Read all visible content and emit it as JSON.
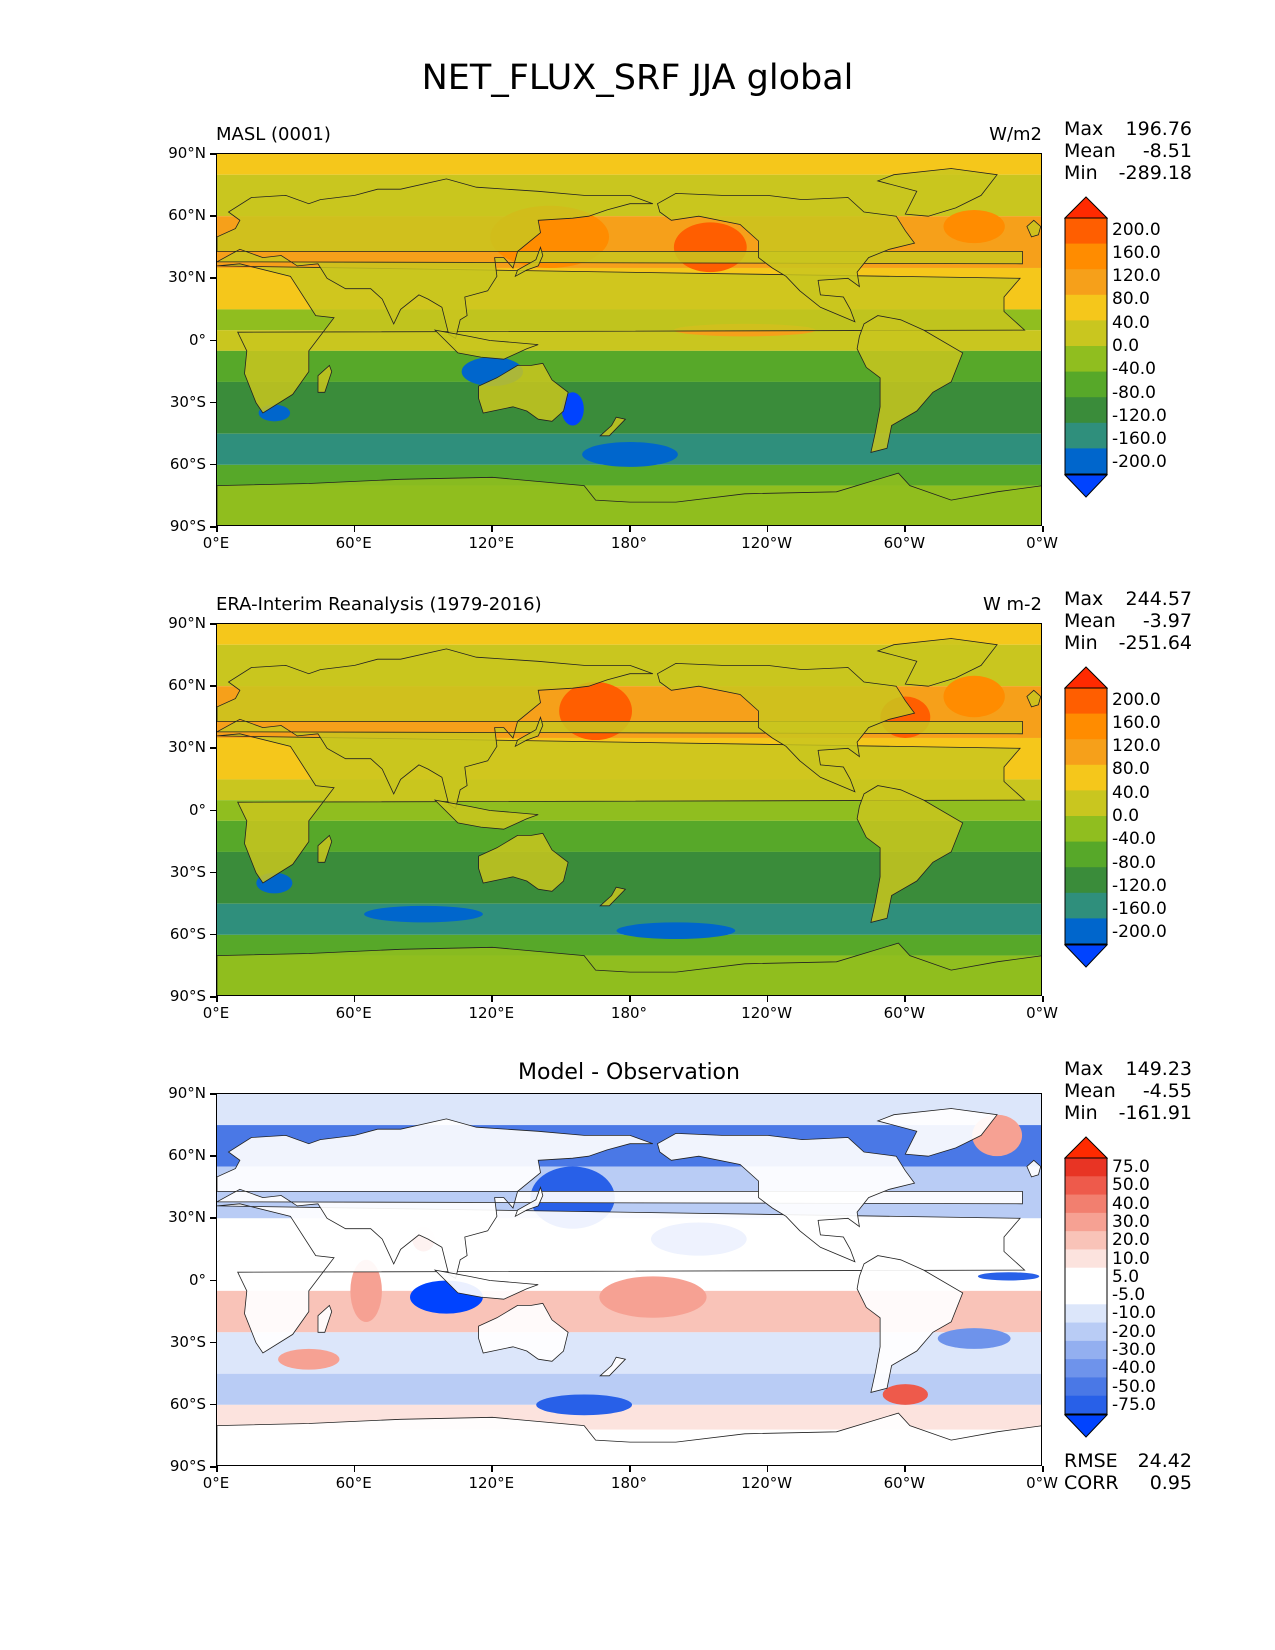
{
  "title": "NET_FLUX_SRF JJA global",
  "colors": {
    "sequential": [
      "#0043ff",
      "#0066cc",
      "#2f8f7c",
      "#3a8c3a",
      "#57a829",
      "#90be1f",
      "#c9c61f",
      "#f5c71b",
      "#f6a01a",
      "#ff8c00",
      "#ff5e00",
      "#ff2a00"
    ],
    "diverging": [
      "#0043ff",
      "#2860e8",
      "#4a78e6",
      "#6e93eb",
      "#93aff0",
      "#b9ccf5",
      "#dce6fa",
      "#ffffff",
      "#ffffff",
      "#fce3de",
      "#f9c3b8",
      "#f6a193",
      "#f27f6f",
      "#ee5a4b",
      "#e83424",
      "#ff2a00"
    ]
  },
  "chart_data": [
    {
      "type": "heatmap",
      "title_left": "MASL (0001)",
      "units": "W/m2",
      "stats": {
        "max_label": "Max",
        "max": "196.76",
        "mean_label": "Mean",
        "mean": "-8.51",
        "min_label": "Min",
        "min": "-289.18"
      },
      "colorbar_levels": [
        "200.0",
        "160.0",
        "120.0",
        "80.0",
        "40.0",
        "0.0",
        "-40.0",
        "-80.0",
        "-120.0",
        "-160.0",
        "-200.0"
      ],
      "xticks": [
        "0°E",
        "60°E",
        "120°E",
        "180°",
        "120°W",
        "60°W",
        "0°W"
      ],
      "yticks": [
        "90°N",
        "60°N",
        "30°N",
        "0°",
        "30°S",
        "60°S",
        "90°S"
      ],
      "xlim": [
        0,
        360
      ],
      "ylim": [
        -90,
        90
      ]
    },
    {
      "type": "heatmap",
      "title_left": "ERA-Interim Reanalysis (1979-2016)",
      "units": "W m-2",
      "stats": {
        "max_label": "Max",
        "max": "244.57",
        "mean_label": "Mean",
        "mean": "-3.97",
        "min_label": "Min",
        "min": "-251.64"
      },
      "colorbar_levels": [
        "200.0",
        "160.0",
        "120.0",
        "80.0",
        "40.0",
        "0.0",
        "-40.0",
        "-80.0",
        "-120.0",
        "-160.0",
        "-200.0"
      ],
      "xticks": [
        "0°E",
        "60°E",
        "120°E",
        "180°",
        "120°W",
        "60°W",
        "0°W"
      ],
      "yticks": [
        "90°N",
        "60°N",
        "30°N",
        "0°",
        "30°S",
        "60°S",
        "90°S"
      ],
      "xlim": [
        0,
        360
      ],
      "ylim": [
        -90,
        90
      ]
    },
    {
      "type": "heatmap",
      "title_center": "Model - Observation",
      "stats": {
        "max_label": "Max",
        "max": "149.23",
        "mean_label": "Mean",
        "mean": "-4.55",
        "min_label": "Min",
        "min": "-161.91"
      },
      "colorbar_levels": [
        "75.0",
        "50.0",
        "40.0",
        "30.0",
        "20.0",
        "10.0",
        "5.0",
        "-5.0",
        "-10.0",
        "-20.0",
        "-30.0",
        "-40.0",
        "-50.0",
        "-75.0"
      ],
      "xticks": [
        "0°E",
        "60°E",
        "120°E",
        "180°",
        "120°W",
        "60°W",
        "0°W"
      ],
      "yticks": [
        "90°N",
        "60°N",
        "30°N",
        "0°",
        "30°S",
        "60°S",
        "90°S"
      ],
      "xlim": [
        0,
        360
      ],
      "ylim": [
        -90,
        90
      ],
      "metrics": {
        "rmse_label": "RMSE",
        "rmse": "24.42",
        "corr_label": "CORR",
        "corr": "0.95"
      }
    }
  ]
}
